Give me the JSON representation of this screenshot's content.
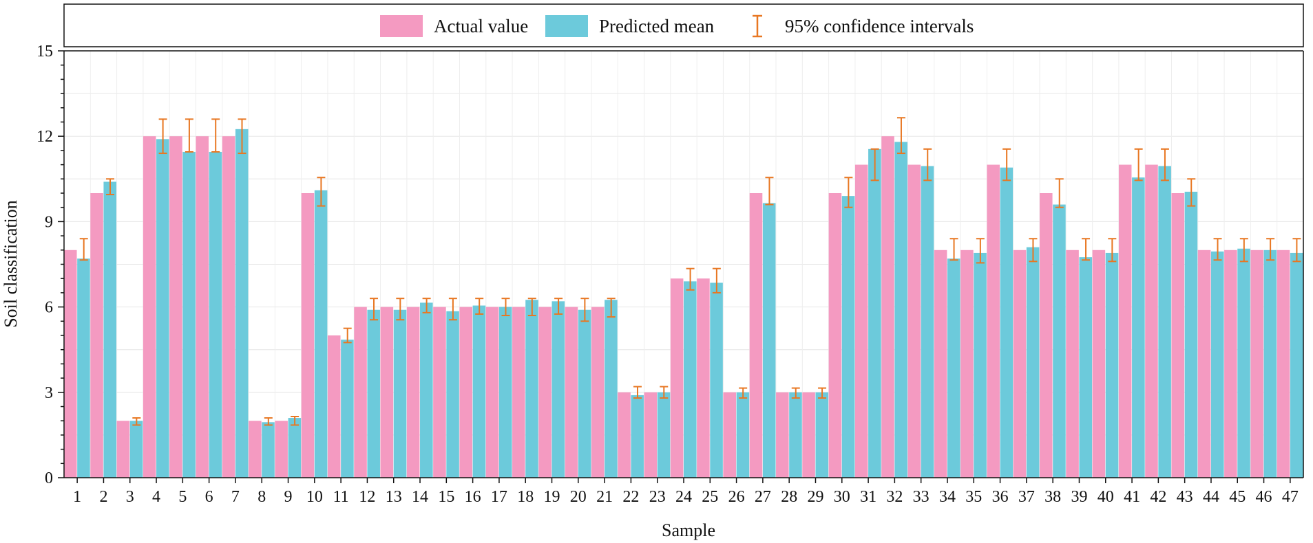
{
  "chart_data": {
    "type": "bar",
    "title": "",
    "xlabel": "Sample",
    "ylabel": "Soil classification",
    "ylim": [
      0,
      15
    ],
    "yticks": [
      "0",
      "3",
      "6",
      "9",
      "12",
      "15"
    ],
    "grid": true,
    "legend_position": "top",
    "categories": [
      "1",
      "2",
      "3",
      "4",
      "5",
      "6",
      "7",
      "8",
      "9",
      "10",
      "11",
      "12",
      "13",
      "14",
      "15",
      "16",
      "17",
      "18",
      "19",
      "20",
      "21",
      "22",
      "23",
      "24",
      "25",
      "26",
      "27",
      "28",
      "29",
      "30",
      "31",
      "32",
      "33",
      "34",
      "35",
      "36",
      "37",
      "38",
      "39",
      "40",
      "41",
      "42",
      "43",
      "44",
      "45",
      "46",
      "47"
    ],
    "series": [
      {
        "name": "Actual value",
        "color": "#f49ac1",
        "values": [
          8,
          10,
          2,
          12,
          12,
          12,
          12,
          2,
          2,
          10,
          5,
          6,
          6,
          6,
          6,
          6,
          6,
          6,
          6,
          6,
          6,
          3,
          3,
          7,
          7,
          3,
          10,
          3,
          3,
          10,
          11,
          12,
          11,
          8,
          8,
          11,
          8,
          10,
          8,
          8,
          11,
          11,
          10,
          8,
          8,
          8,
          8
        ]
      },
      {
        "name": "Predicted mean",
        "color": "#6ccadb",
        "values": [
          7.7,
          10.4,
          2.0,
          11.9,
          11.45,
          11.45,
          12.25,
          1.95,
          2.1,
          10.1,
          4.85,
          5.9,
          5.9,
          6.15,
          5.85,
          6.05,
          6.0,
          6.25,
          6.2,
          5.9,
          6.25,
          2.9,
          3.0,
          6.9,
          6.85,
          3.0,
          9.65,
          3.0,
          3.0,
          9.9,
          11.55,
          11.8,
          10.95,
          7.7,
          7.9,
          10.9,
          8.1,
          9.6,
          7.75,
          7.9,
          10.55,
          10.95,
          10.05,
          7.95,
          8.05,
          8.0,
          7.9
        ]
      }
    ],
    "error_bars": {
      "name": "95% confidence intervals",
      "color": "#e87722",
      "lower": [
        7.65,
        9.95,
        1.85,
        11.4,
        11.45,
        11.45,
        11.4,
        1.85,
        1.85,
        9.55,
        4.75,
        5.55,
        5.55,
        5.8,
        5.55,
        5.75,
        5.7,
        5.7,
        5.75,
        5.5,
        5.65,
        2.8,
        2.8,
        6.6,
        6.5,
        2.8,
        9.6,
        2.8,
        2.8,
        9.5,
        10.45,
        11.4,
        10.45,
        7.65,
        7.55,
        10.45,
        7.6,
        9.5,
        7.65,
        7.6,
        10.45,
        10.45,
        9.55,
        7.65,
        7.6,
        7.65,
        7.6
      ],
      "upper": [
        8.4,
        10.5,
        2.1,
        12.6,
        12.6,
        12.6,
        12.6,
        2.1,
        2.15,
        10.55,
        5.25,
        6.3,
        6.3,
        6.3,
        6.3,
        6.3,
        6.3,
        6.3,
        6.3,
        6.3,
        6.3,
        3.2,
        3.2,
        7.35,
        7.35,
        3.15,
        10.55,
        3.15,
        3.15,
        10.55,
        11.55,
        12.65,
        11.55,
        8.4,
        8.4,
        11.55,
        8.4,
        10.5,
        8.4,
        8.4,
        11.55,
        11.55,
        10.5,
        8.4,
        8.4,
        8.4,
        8.4
      ]
    }
  }
}
